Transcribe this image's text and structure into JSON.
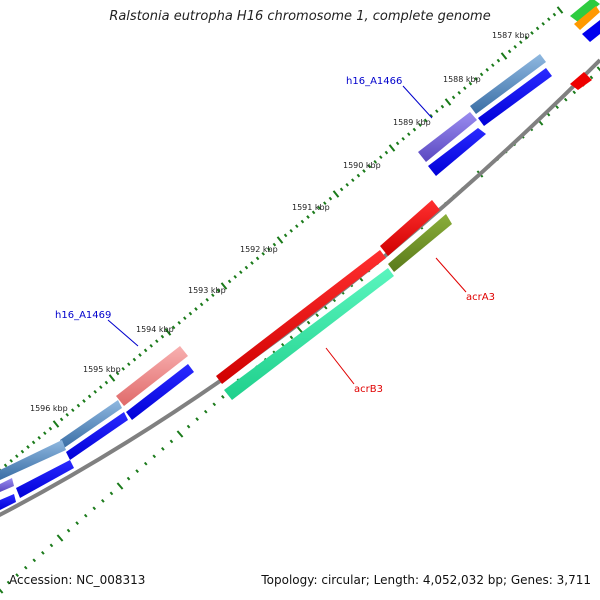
{
  "title": "Ralstonia eutropha H16 chromosome 1, complete genome",
  "footer": {
    "accession": "Accession: NC_008313",
    "summary": "Topology: circular; Length: 4,052,032 bp; Genes: 3,711"
  },
  "ticks": [
    "1587 kbp",
    "1588 kbp",
    "1589 kbp",
    "1590 kbp",
    "1591 kbp",
    "1592 kbp",
    "1593 kbp",
    "1594 kbp",
    "1595 kbp",
    "1596 kbp"
  ],
  "gene_labels": {
    "h16_A1466": "h16_A1466",
    "h16_A1469": "h16_A1469",
    "acrA3": "acrA3",
    "acrB3": "acrB3"
  },
  "colors": {
    "backbone": "#888888",
    "cds_forward": "#0000ee",
    "cds_reverse": "#ee0000",
    "cog_steelblue": "#4a7fb5",
    "cog_purple": "#6a5acd",
    "cog_pink": "#f08080",
    "cog_green": "#2ee8a0",
    "cog_olive": "#6b8e23",
    "tick": "#1a7a1a"
  }
}
